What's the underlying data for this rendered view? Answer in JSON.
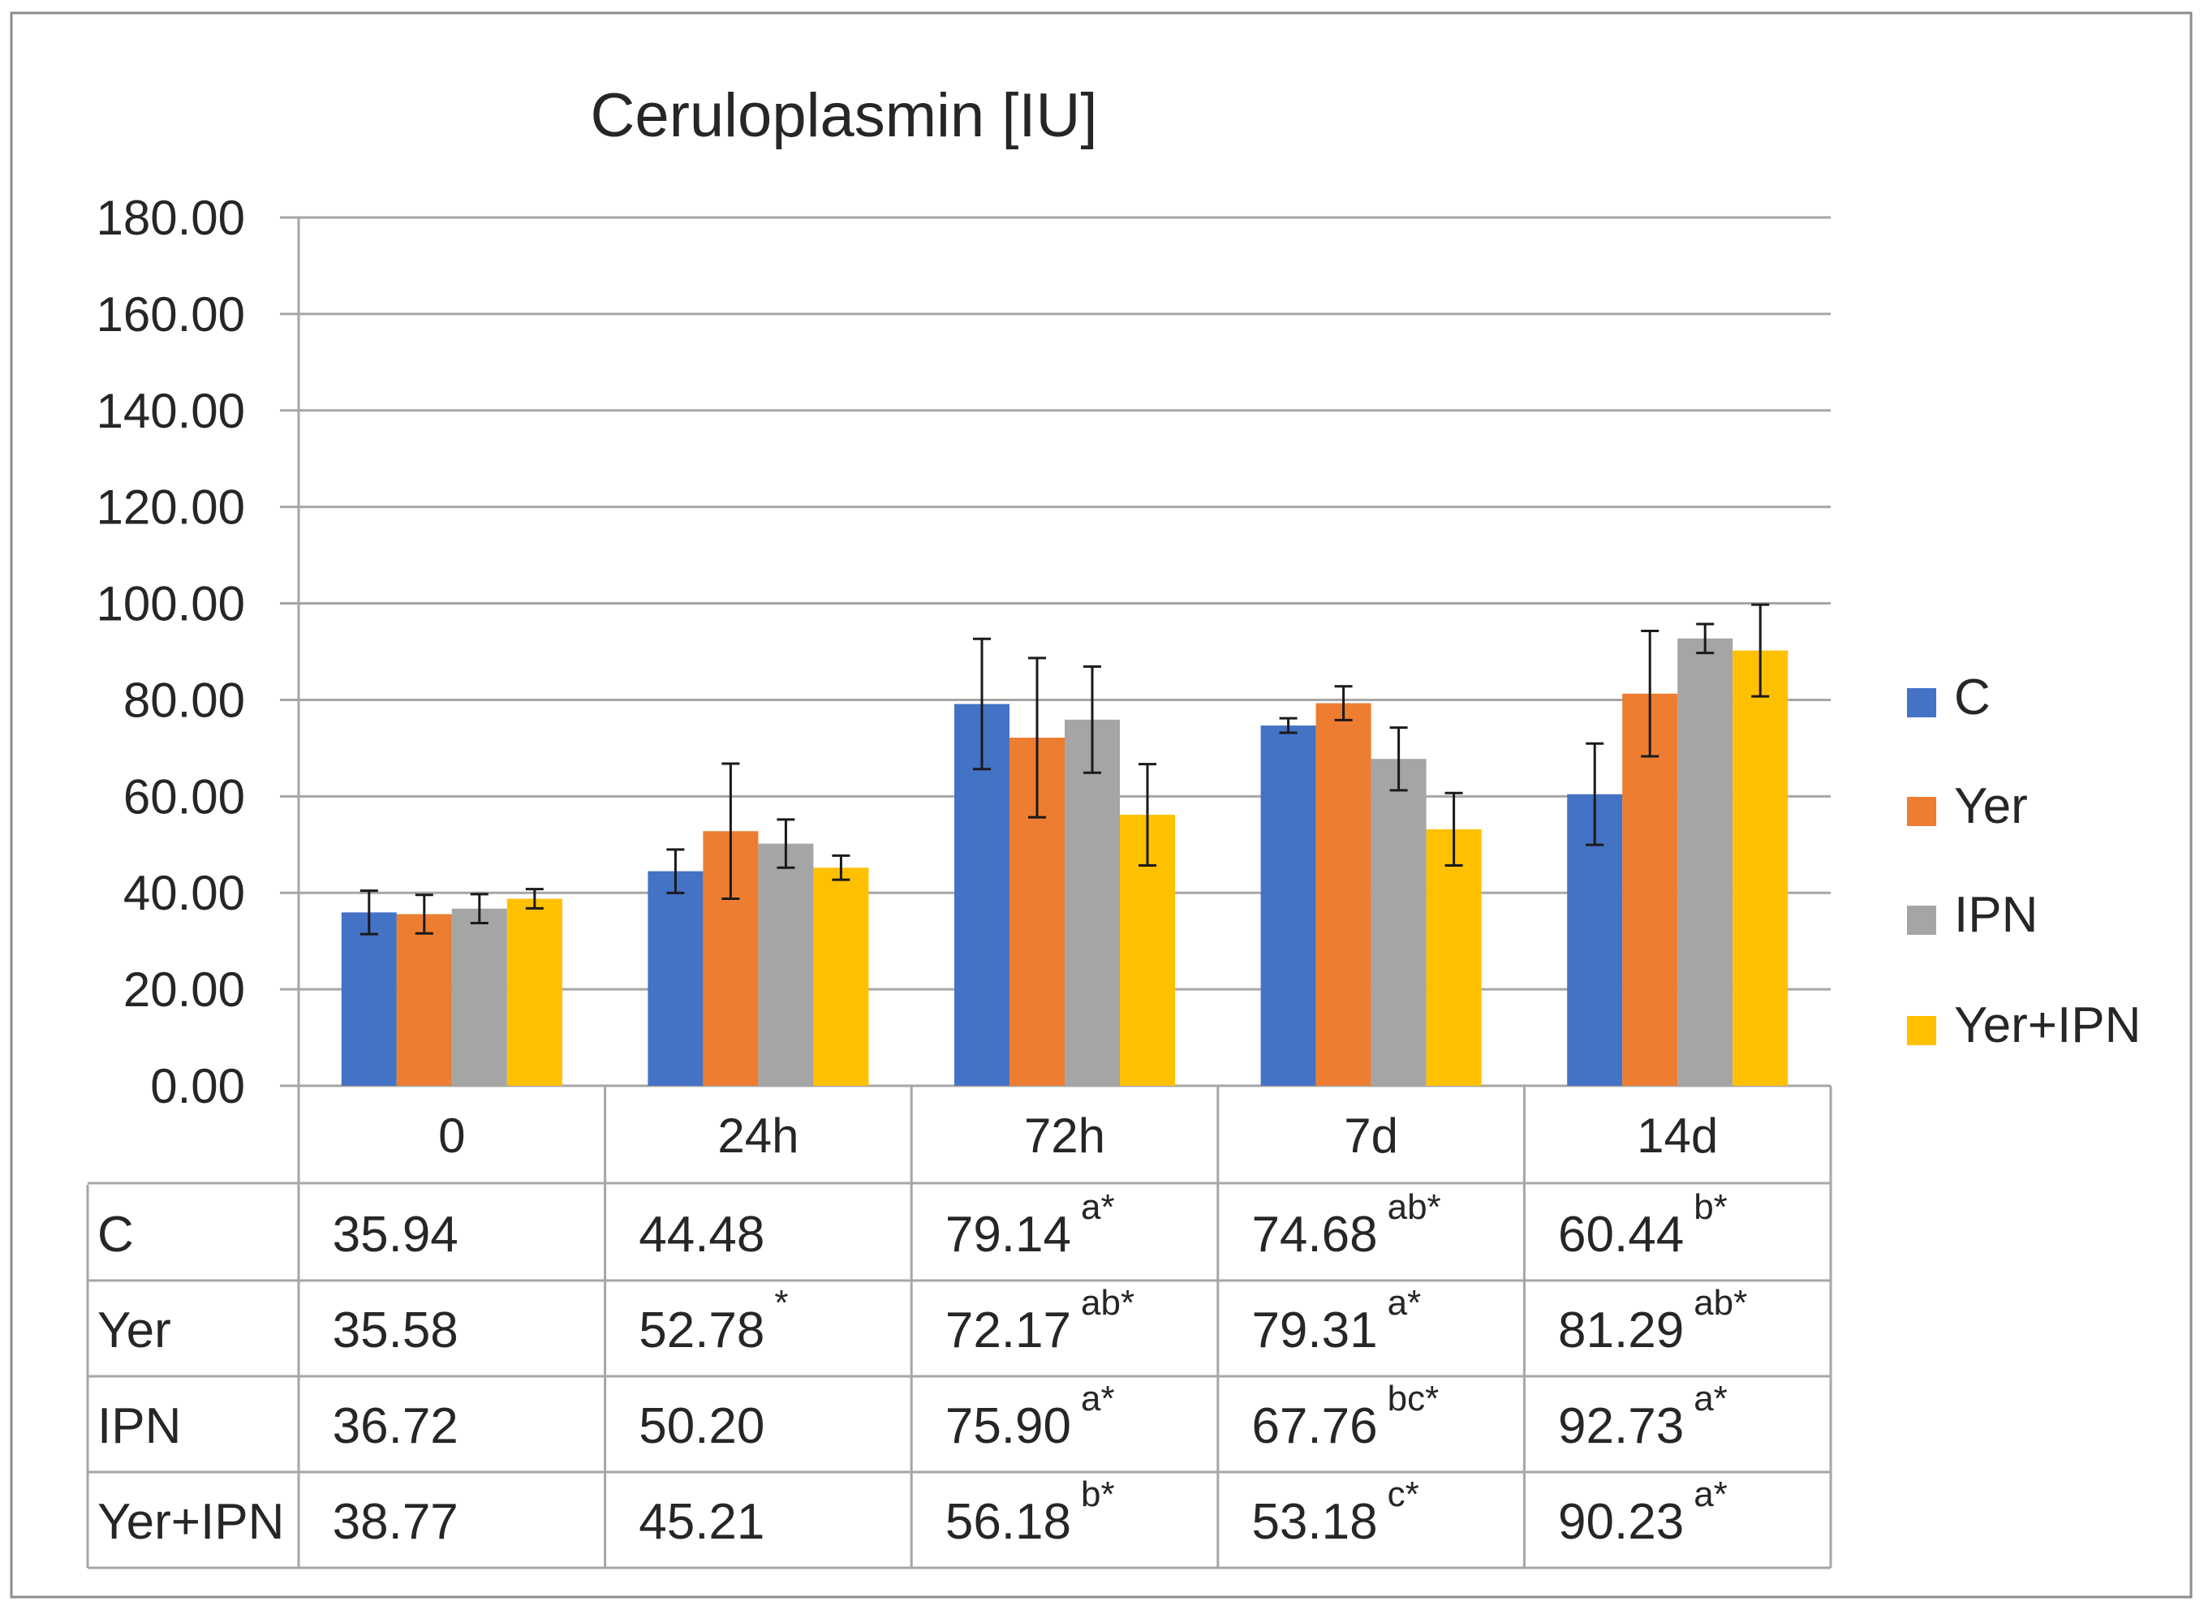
{
  "chart_data": {
    "type": "bar",
    "title": "Ceruloplasmin [IU]",
    "xlabel": "",
    "ylabel": "",
    "ylim": [
      0,
      180
    ],
    "y_ticks": [
      "0.00",
      "20.00",
      "40.00",
      "60.00",
      "80.00",
      "100.00",
      "120.00",
      "140.00",
      "160.00",
      "180.00"
    ],
    "categories": [
      "0",
      "24h",
      "72h",
      "7d",
      "14d"
    ],
    "legend_position": "right",
    "series": [
      {
        "name": "C",
        "color": "#4472C4",
        "values": [
          35.94,
          44.48,
          79.14,
          74.68,
          60.44
        ],
        "errors": [
          4.5,
          4.5,
          13.5,
          1.5,
          10.5
        ],
        "labels": [
          "35.94",
          "44.48",
          "79.14",
          "74.68",
          "60.44"
        ],
        "superscripts": [
          "",
          "",
          "a*",
          "ab*",
          "b*"
        ]
      },
      {
        "name": "Yer",
        "color": "#ED7D31",
        "values": [
          35.58,
          52.78,
          72.17,
          79.31,
          81.29
        ],
        "errors": [
          4.0,
          14.0,
          16.5,
          3.5,
          13.0
        ],
        "labels": [
          "35.58",
          "52.78",
          "72.17",
          "79.31",
          "81.29"
        ],
        "superscripts": [
          "",
          "*",
          "ab*",
          "a*",
          "ab*"
        ]
      },
      {
        "name": "IPN",
        "color": "#A5A5A5",
        "values": [
          36.72,
          50.2,
          75.9,
          67.76,
          92.73
        ],
        "errors": [
          3.0,
          5.0,
          11.0,
          6.5,
          3.0
        ],
        "labels": [
          "36.72",
          "50.20",
          "75.90",
          "67.76",
          "92.73"
        ],
        "superscripts": [
          "",
          "",
          "a*",
          "bc*",
          "a*"
        ]
      },
      {
        "name": "Yer+IPN",
        "color": "#FFC000",
        "values": [
          38.77,
          45.21,
          56.18,
          53.18,
          90.23
        ],
        "errors": [
          2.0,
          2.5,
          10.5,
          7.5,
          9.5
        ],
        "labels": [
          "38.77",
          "45.21",
          "56.18",
          "53.18",
          "90.23"
        ],
        "superscripts": [
          "",
          "",
          "b*",
          "c*",
          "a*"
        ]
      }
    ]
  }
}
